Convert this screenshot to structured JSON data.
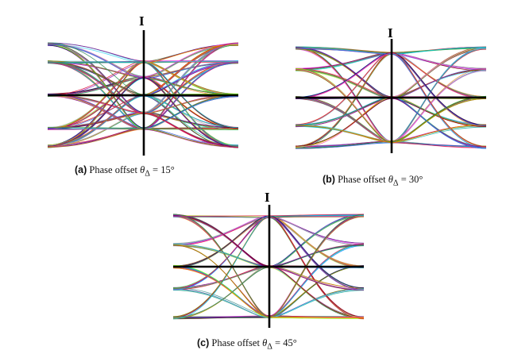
{
  "chart_data": [
    {
      "type": "line",
      "axis_label": "I",
      "caption_tag": "(a)",
      "caption_text": "Phase offset",
      "caption_math": "θ",
      "caption_sub": "Δ",
      "caption_eq": "= 15°",
      "phase_offset_deg": 15,
      "levels": [
        0.92,
        0.6,
        0.0,
        -0.6,
        -0.92
      ],
      "cross_points": [
        0.6,
        0.32,
        0.0,
        -0.32,
        -0.6
      ],
      "traces_per_level": 34
    },
    {
      "type": "line",
      "axis_label": "I",
      "caption_tag": "(b)",
      "caption_text": "Phase offset",
      "caption_math": "θ",
      "caption_sub": "Δ",
      "caption_eq": "= 30°",
      "phase_offset_deg": 30,
      "levels": [
        0.92,
        0.52,
        0.0,
        -0.52,
        -0.92
      ],
      "cross_points": [
        0.82,
        0.0,
        -0.82
      ],
      "traces_per_level": 36
    },
    {
      "type": "line",
      "axis_label": "I",
      "caption_tag": "(c)",
      "caption_text": "Phase offset",
      "caption_math": "θ",
      "caption_sub": "Δ",
      "caption_eq": "= 45°",
      "phase_offset_deg": 45,
      "levels": [
        0.92,
        0.4,
        0.0,
        -0.4,
        -0.92
      ],
      "cross_points": [
        0.9,
        0.0,
        -0.9
      ],
      "traces_per_level": 36
    }
  ]
}
